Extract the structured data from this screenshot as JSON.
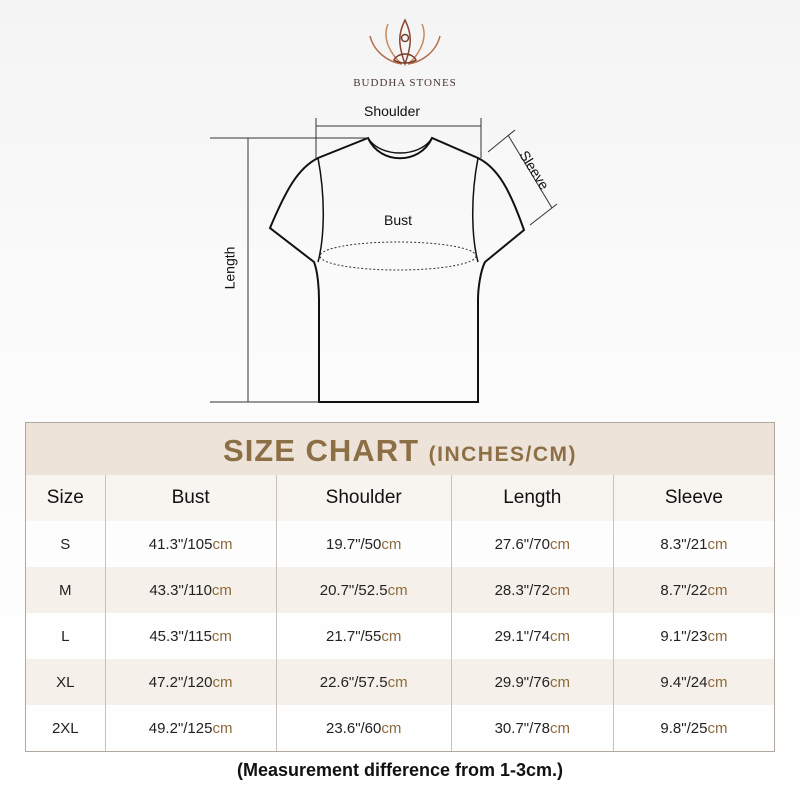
{
  "brand": {
    "name": "BUDDHA STONES",
    "logo_icon": "lotus-meditation-icon",
    "colors": [
      "#c98a5a",
      "#7a3b2e"
    ]
  },
  "diagram": {
    "shoulder": "Shoulder",
    "sleeve": "Sleeve",
    "bust": "Bust",
    "length": "Length"
  },
  "table": {
    "title": "SIZE CHART",
    "title_unit": "(INCHES/CM)",
    "headers": [
      "Size",
      "Bust",
      "Shoulder",
      "Length",
      "Sleeve"
    ],
    "rows": [
      {
        "size": "S",
        "bust": [
          "41.3\"/105",
          "cm"
        ],
        "shoulder": [
          "19.7\"/50",
          "cm"
        ],
        "length": [
          "27.6\"/70",
          "cm"
        ],
        "sleeve": [
          "8.3\"/21",
          "cm"
        ]
      },
      {
        "size": "M",
        "bust": [
          "43.3\"/110",
          "cm"
        ],
        "shoulder": [
          "20.7\"/52.5",
          "cm"
        ],
        "length": [
          "28.3\"/72",
          "cm"
        ],
        "sleeve": [
          "8.7\"/22",
          "cm"
        ]
      },
      {
        "size": "L",
        "bust": [
          "45.3\"/115",
          "cm"
        ],
        "shoulder": [
          "21.7\"/55",
          "cm"
        ],
        "length": [
          "29.1\"/74",
          "cm"
        ],
        "sleeve": [
          "9.1\"/23",
          "cm"
        ]
      },
      {
        "size": "XL",
        "bust": [
          "47.2\"/120",
          "cm"
        ],
        "shoulder": [
          "22.6\"/57.5",
          "cm"
        ],
        "length": [
          "29.9\"/76",
          "cm"
        ],
        "sleeve": [
          "9.4\"/24",
          "cm"
        ]
      },
      {
        "size": "2XL",
        "bust": [
          "49.2\"/125",
          "cm"
        ],
        "shoulder": [
          "23.6\"/60",
          "cm"
        ],
        "length": [
          "30.7\"/78",
          "cm"
        ],
        "sleeve": [
          "9.8\"/25",
          "cm"
        ]
      }
    ],
    "accent": "#8d6f45"
  },
  "note": "(Measurement difference from 1-3cm.)"
}
